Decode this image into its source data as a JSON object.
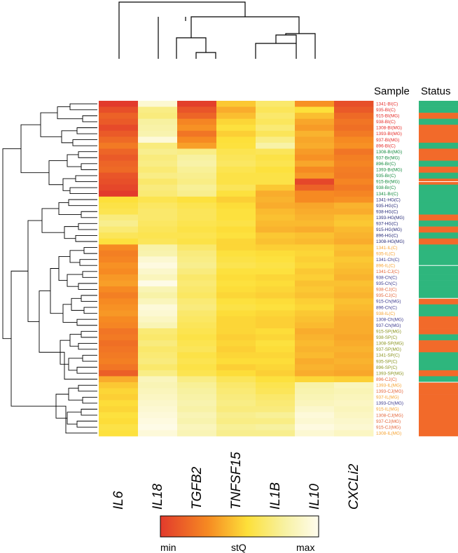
{
  "chart_data": {
    "type": "heatmap",
    "title": "",
    "columns": [
      "IL6",
      "IL18",
      "TGFB2",
      "TNFSF15",
      "IL1B",
      "IL10",
      "CXCLi2"
    ],
    "headers": {
      "sample": "Sample",
      "status": "Status"
    },
    "colorbar": {
      "min_label": "min",
      "mid_label": "stQ",
      "max_label": "max",
      "colors": [
        "#e23a2c",
        "#f68a22",
        "#fde03a",
        "#f7f1a0",
        "#fffcee"
      ]
    },
    "palette": {
      "BI": "#e52a26",
      "Br": "#138a3e",
      "HG": "#262a78",
      "IL": "#f6a230",
      "Ch": "#3d3b8f",
      "CJ": "#e4663a",
      "SP": "#8a9420"
    },
    "status_colors": {
      "C": "#2eb67d",
      "MG": "#f26a2a"
    },
    "rows": [
      {
        "label": "1341-BI(C)",
        "group": "BI",
        "status": "C",
        "values": [
          0.0,
          0.92,
          0.02,
          0.48,
          0.66,
          0.32,
          0.08
        ]
      },
      {
        "label": "935-BI(C)",
        "group": "BI",
        "status": "C",
        "values": [
          0.08,
          0.72,
          0.1,
          0.4,
          0.62,
          0.55,
          0.12
        ]
      },
      {
        "label": "915-BI(MG)",
        "group": "BI",
        "status": "MG",
        "values": [
          0.15,
          0.7,
          0.16,
          0.45,
          0.66,
          0.45,
          0.18
        ]
      },
      {
        "label": "938-BI(C)",
        "group": "BI",
        "status": "C",
        "values": [
          0.12,
          0.78,
          0.28,
          0.52,
          0.63,
          0.38,
          0.22
        ]
      },
      {
        "label": "1308-BI(MG)",
        "group": "BI",
        "status": "MG",
        "values": [
          0.06,
          0.8,
          0.32,
          0.56,
          0.68,
          0.35,
          0.2
        ]
      },
      {
        "label": "1393-BI(MG)",
        "group": "BI",
        "status": "MG",
        "values": [
          0.12,
          0.82,
          0.22,
          0.5,
          0.62,
          0.42,
          0.24
        ]
      },
      {
        "label": "937-BI(MG)",
        "group": "BI",
        "status": "MG",
        "values": [
          0.18,
          0.94,
          0.3,
          0.55,
          0.72,
          0.38,
          0.3
        ]
      },
      {
        "label": "896-BI(C)",
        "group": "BI",
        "status": "C",
        "values": [
          0.24,
          0.7,
          0.36,
          0.56,
          0.8,
          0.4,
          0.32
        ]
      },
      {
        "label": "1308-Br(MG)",
        "group": "Br",
        "status": "MG",
        "values": [
          0.16,
          0.74,
          0.72,
          0.6,
          0.62,
          0.35,
          0.22
        ]
      },
      {
        "label": "937-Br(MG)",
        "group": "Br",
        "status": "MG",
        "values": [
          0.12,
          0.7,
          0.78,
          0.62,
          0.58,
          0.32,
          0.26
        ]
      },
      {
        "label": "896-Br(C)",
        "group": "Br",
        "status": "C",
        "values": [
          0.16,
          0.72,
          0.8,
          0.64,
          0.6,
          0.38,
          0.28
        ]
      },
      {
        "label": "1393-Br(MG)",
        "group": "Br",
        "status": "MG",
        "values": [
          0.18,
          0.68,
          0.76,
          0.6,
          0.56,
          0.3,
          0.25
        ]
      },
      {
        "label": "935-Br(C)",
        "group": "Br",
        "status": "C",
        "values": [
          0.1,
          0.72,
          0.74,
          0.58,
          0.58,
          0.34,
          0.24
        ]
      },
      {
        "label": "915-Br(MG)",
        "group": "Br",
        "status": "MG",
        "values": [
          0.08,
          0.66,
          0.72,
          0.58,
          0.58,
          0.05,
          0.28
        ]
      },
      {
        "label": "938-Br(C)",
        "group": "Br",
        "status": "C",
        "values": [
          0.05,
          0.7,
          0.76,
          0.62,
          0.48,
          0.15,
          0.24
        ]
      },
      {
        "label": "1341-Br(C)",
        "group": "Br",
        "status": "C",
        "values": [
          0.0,
          0.68,
          0.74,
          0.56,
          0.4,
          0.3,
          0.28
        ]
      },
      {
        "label": "1341-HG(C)",
        "group": "HG",
        "status": "C",
        "values": [
          0.55,
          0.6,
          0.56,
          0.5,
          0.42,
          0.3,
          0.32
        ]
      },
      {
        "label": "935-HG(C)",
        "group": "HG",
        "status": "C",
        "values": [
          0.58,
          0.64,
          0.6,
          0.54,
          0.4,
          0.38,
          0.42
        ]
      },
      {
        "label": "938-HG(C)",
        "group": "HG",
        "status": "C",
        "values": [
          0.6,
          0.66,
          0.62,
          0.56,
          0.44,
          0.4,
          0.4
        ]
      },
      {
        "label": "1393-HG(MG)",
        "group": "HG",
        "status": "MG",
        "values": [
          0.7,
          0.66,
          0.62,
          0.56,
          0.46,
          0.42,
          0.46
        ]
      },
      {
        "label": "937-HG(C)",
        "group": "HG",
        "status": "C",
        "values": [
          0.74,
          0.64,
          0.6,
          0.58,
          0.44,
          0.44,
          0.48
        ]
      },
      {
        "label": "915-HG(MG)",
        "group": "HG",
        "status": "MG",
        "values": [
          0.68,
          0.62,
          0.58,
          0.54,
          0.42,
          0.4,
          0.44
        ]
      },
      {
        "label": "896-HG(C)",
        "group": "HG",
        "status": "C",
        "values": [
          0.62,
          0.6,
          0.6,
          0.56,
          0.48,
          0.46,
          0.42
        ]
      },
      {
        "label": "1308-HG(MG)",
        "group": "HG",
        "status": "MG",
        "values": [
          0.56,
          0.62,
          0.58,
          0.52,
          0.46,
          0.44,
          0.4
        ]
      },
      {
        "label": "1341-IL(C)",
        "group": "IL",
        "status": "C",
        "values": [
          0.3,
          0.8,
          0.66,
          0.52,
          0.5,
          0.5,
          0.46
        ]
      },
      {
        "label": "935-IL(C)",
        "group": "IL",
        "status": "C",
        "values": [
          0.26,
          0.82,
          0.7,
          0.56,
          0.54,
          0.52,
          0.44
        ]
      },
      {
        "label": "1341-Ch(C)",
        "group": "Ch",
        "status": "C",
        "values": [
          0.28,
          0.92,
          0.72,
          0.58,
          0.56,
          0.5,
          0.48
        ]
      },
      {
        "label": "896-IL(C)",
        "group": "IL",
        "status": "C",
        "values": [
          0.32,
          0.96,
          0.74,
          0.6,
          0.58,
          0.52,
          0.46
        ]
      },
      {
        "label": "1341-CJ(C)",
        "group": "CJ",
        "status": "C",
        "values": [
          0.3,
          0.9,
          0.7,
          0.56,
          0.56,
          0.48,
          0.44
        ]
      },
      {
        "label": "938-Ch(C)",
        "group": "Ch",
        "status": "C",
        "values": [
          0.34,
          0.86,
          0.66,
          0.54,
          0.52,
          0.5,
          0.42
        ]
      },
      {
        "label": "935-Ch(C)",
        "group": "Ch",
        "status": "C",
        "values": [
          0.36,
          0.98,
          0.68,
          0.56,
          0.54,
          0.46,
          0.46
        ]
      },
      {
        "label": "938-CJ(C)",
        "group": "CJ",
        "status": "C",
        "values": [
          0.3,
          0.84,
          0.66,
          0.54,
          0.52,
          0.48,
          0.44
        ]
      },
      {
        "label": "935-CJ(C)",
        "group": "CJ",
        "status": "C",
        "values": [
          0.26,
          0.8,
          0.64,
          0.52,
          0.5,
          0.46,
          0.42
        ]
      },
      {
        "label": "915-Ch(MG)",
        "group": "Ch",
        "status": "MG",
        "values": [
          0.3,
          0.86,
          0.68,
          0.56,
          0.54,
          0.5,
          0.46
        ]
      },
      {
        "label": "896-Ch(C)",
        "group": "Ch",
        "status": "C",
        "values": [
          0.32,
          0.94,
          0.7,
          0.58,
          0.56,
          0.52,
          0.44
        ]
      },
      {
        "label": "938-IL(C)",
        "group": "IL",
        "status": "C",
        "values": [
          0.34,
          0.92,
          0.66,
          0.54,
          0.52,
          0.48,
          0.42
        ]
      },
      {
        "label": "1308-Ch(MG)",
        "group": "Ch",
        "status": "MG",
        "values": [
          0.3,
          0.88,
          0.64,
          0.52,
          0.5,
          0.46,
          0.4
        ]
      },
      {
        "label": "937-Ch(MG)",
        "group": "Ch",
        "status": "MG",
        "values": [
          0.28,
          0.84,
          0.62,
          0.52,
          0.5,
          0.44,
          0.4
        ]
      },
      {
        "label": "915-SP(MG)",
        "group": "SP",
        "status": "MG",
        "values": [
          0.22,
          0.68,
          0.6,
          0.52,
          0.54,
          0.4,
          0.4
        ]
      },
      {
        "label": "938-SP(C)",
        "group": "SP",
        "status": "C",
        "values": [
          0.24,
          0.66,
          0.58,
          0.5,
          0.52,
          0.42,
          0.38
        ]
      },
      {
        "label": "1308-SP(MG)",
        "group": "SP",
        "status": "MG",
        "values": [
          0.2,
          0.7,
          0.6,
          0.52,
          0.56,
          0.44,
          0.4
        ]
      },
      {
        "label": "937-SP(MG)",
        "group": "SP",
        "status": "MG",
        "values": [
          0.22,
          0.66,
          0.62,
          0.5,
          0.54,
          0.42,
          0.42
        ]
      },
      {
        "label": "1341-SP(C)",
        "group": "SP",
        "status": "C",
        "values": [
          0.24,
          0.68,
          0.58,
          0.52,
          0.52,
          0.44,
          0.4
        ]
      },
      {
        "label": "935-SP(C)",
        "group": "SP",
        "status": "C",
        "values": [
          0.26,
          0.7,
          0.6,
          0.54,
          0.54,
          0.4,
          0.42
        ]
      },
      {
        "label": "896-SP(C)",
        "group": "SP",
        "status": "C",
        "values": [
          0.22,
          0.66,
          0.58,
          0.5,
          0.52,
          0.42,
          0.4
        ]
      },
      {
        "label": "1393-SP(MG)",
        "group": "SP",
        "status": "MG",
        "values": [
          0.14,
          0.72,
          0.6,
          0.54,
          0.5,
          0.4,
          0.38
        ]
      },
      {
        "label": "896-CJ(C)",
        "group": "CJ",
        "status": "C",
        "values": [
          0.4,
          0.86,
          0.72,
          0.62,
          0.56,
          0.52,
          0.5
        ]
      },
      {
        "label": "1393-IL(MG)",
        "group": "IL",
        "status": "MG",
        "values": [
          0.48,
          0.84,
          0.76,
          0.66,
          0.6,
          0.8,
          0.86
        ]
      },
      {
        "label": "1393-CJ(MG)",
        "group": "CJ",
        "status": "MG",
        "values": [
          0.52,
          0.86,
          0.78,
          0.68,
          0.62,
          0.82,
          0.84
        ]
      },
      {
        "label": "937-IL(MG)",
        "group": "IL",
        "status": "MG",
        "values": [
          0.5,
          0.88,
          0.8,
          0.7,
          0.66,
          0.84,
          0.86
        ]
      },
      {
        "label": "1393-Ch(MG)",
        "group": "Ch",
        "status": "MG",
        "values": [
          0.54,
          0.9,
          0.82,
          0.72,
          0.68,
          0.86,
          0.88
        ]
      },
      {
        "label": "915-IL(MG)",
        "group": "IL",
        "status": "MG",
        "values": [
          0.52,
          0.92,
          0.8,
          0.7,
          0.7,
          0.9,
          0.86
        ]
      },
      {
        "label": "1308-CJ(MG)",
        "group": "CJ",
        "status": "MG",
        "values": [
          0.56,
          0.94,
          0.84,
          0.74,
          0.76,
          0.94,
          0.88
        ]
      },
      {
        "label": "937-CJ(MG)",
        "group": "CJ",
        "status": "MG",
        "values": [
          0.54,
          0.96,
          0.82,
          0.72,
          0.72,
          0.92,
          0.9
        ]
      },
      {
        "label": "915-CJ(MG)",
        "group": "CJ",
        "status": "MG",
        "values": [
          0.58,
          0.98,
          0.86,
          0.76,
          0.78,
          0.96,
          0.92
        ]
      },
      {
        "label": "1308-IL(MG)",
        "group": "IL",
        "status": "MG",
        "values": [
          0.56,
          0.94,
          0.84,
          0.74,
          0.74,
          0.92,
          0.88
        ]
      }
    ]
  }
}
